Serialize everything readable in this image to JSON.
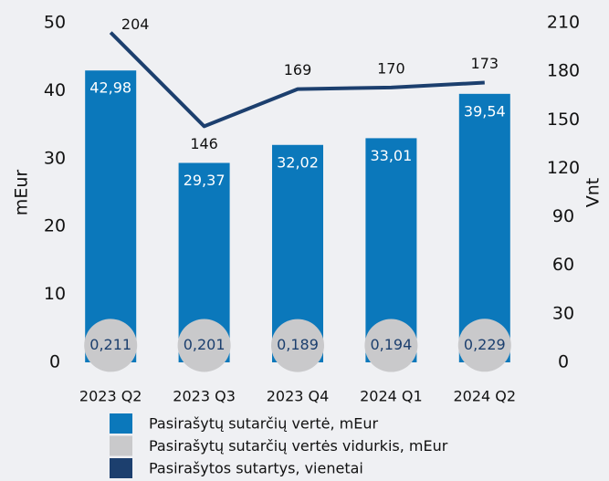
{
  "chart_data": {
    "type": "bar",
    "categories": [
      "2023 Q2",
      "2023 Q3",
      "2023 Q4",
      "2024 Q1",
      "2024 Q2"
    ],
    "series": [
      {
        "name": "Pasirašytų sutarčių vertė, mEur",
        "color": "#0b78bb",
        "values": [
          42.98,
          29.37,
          32.02,
          33.01,
          39.54
        ],
        "value_labels": [
          "42,98",
          "29,37",
          "32,02",
          "33,01",
          "39,54"
        ]
      },
      {
        "name": "Pasirašytų sutarčių vertės vidurkis, mEur",
        "color": "#c9c9cb",
        "values": [
          0.211,
          0.201,
          0.189,
          0.194,
          0.229
        ],
        "value_labels": [
          "0,211",
          "0,201",
          "0,189",
          "0,194",
          "0,229"
        ]
      },
      {
        "name": "Pasirašytos sutartys, vienetai",
        "color": "#1c3f6e",
        "axis": "y2",
        "values": [
          204,
          146,
          169,
          170,
          173
        ]
      }
    ],
    "ylabel": "mEur",
    "y2label": "Vnt",
    "ylim": [
      0,
      50
    ],
    "yticks": [
      0,
      10,
      20,
      30,
      40,
      50
    ],
    "y2lim": [
      0,
      210
    ],
    "y2ticks": [
      0,
      30,
      60,
      90,
      120,
      150,
      180,
      210
    ]
  }
}
